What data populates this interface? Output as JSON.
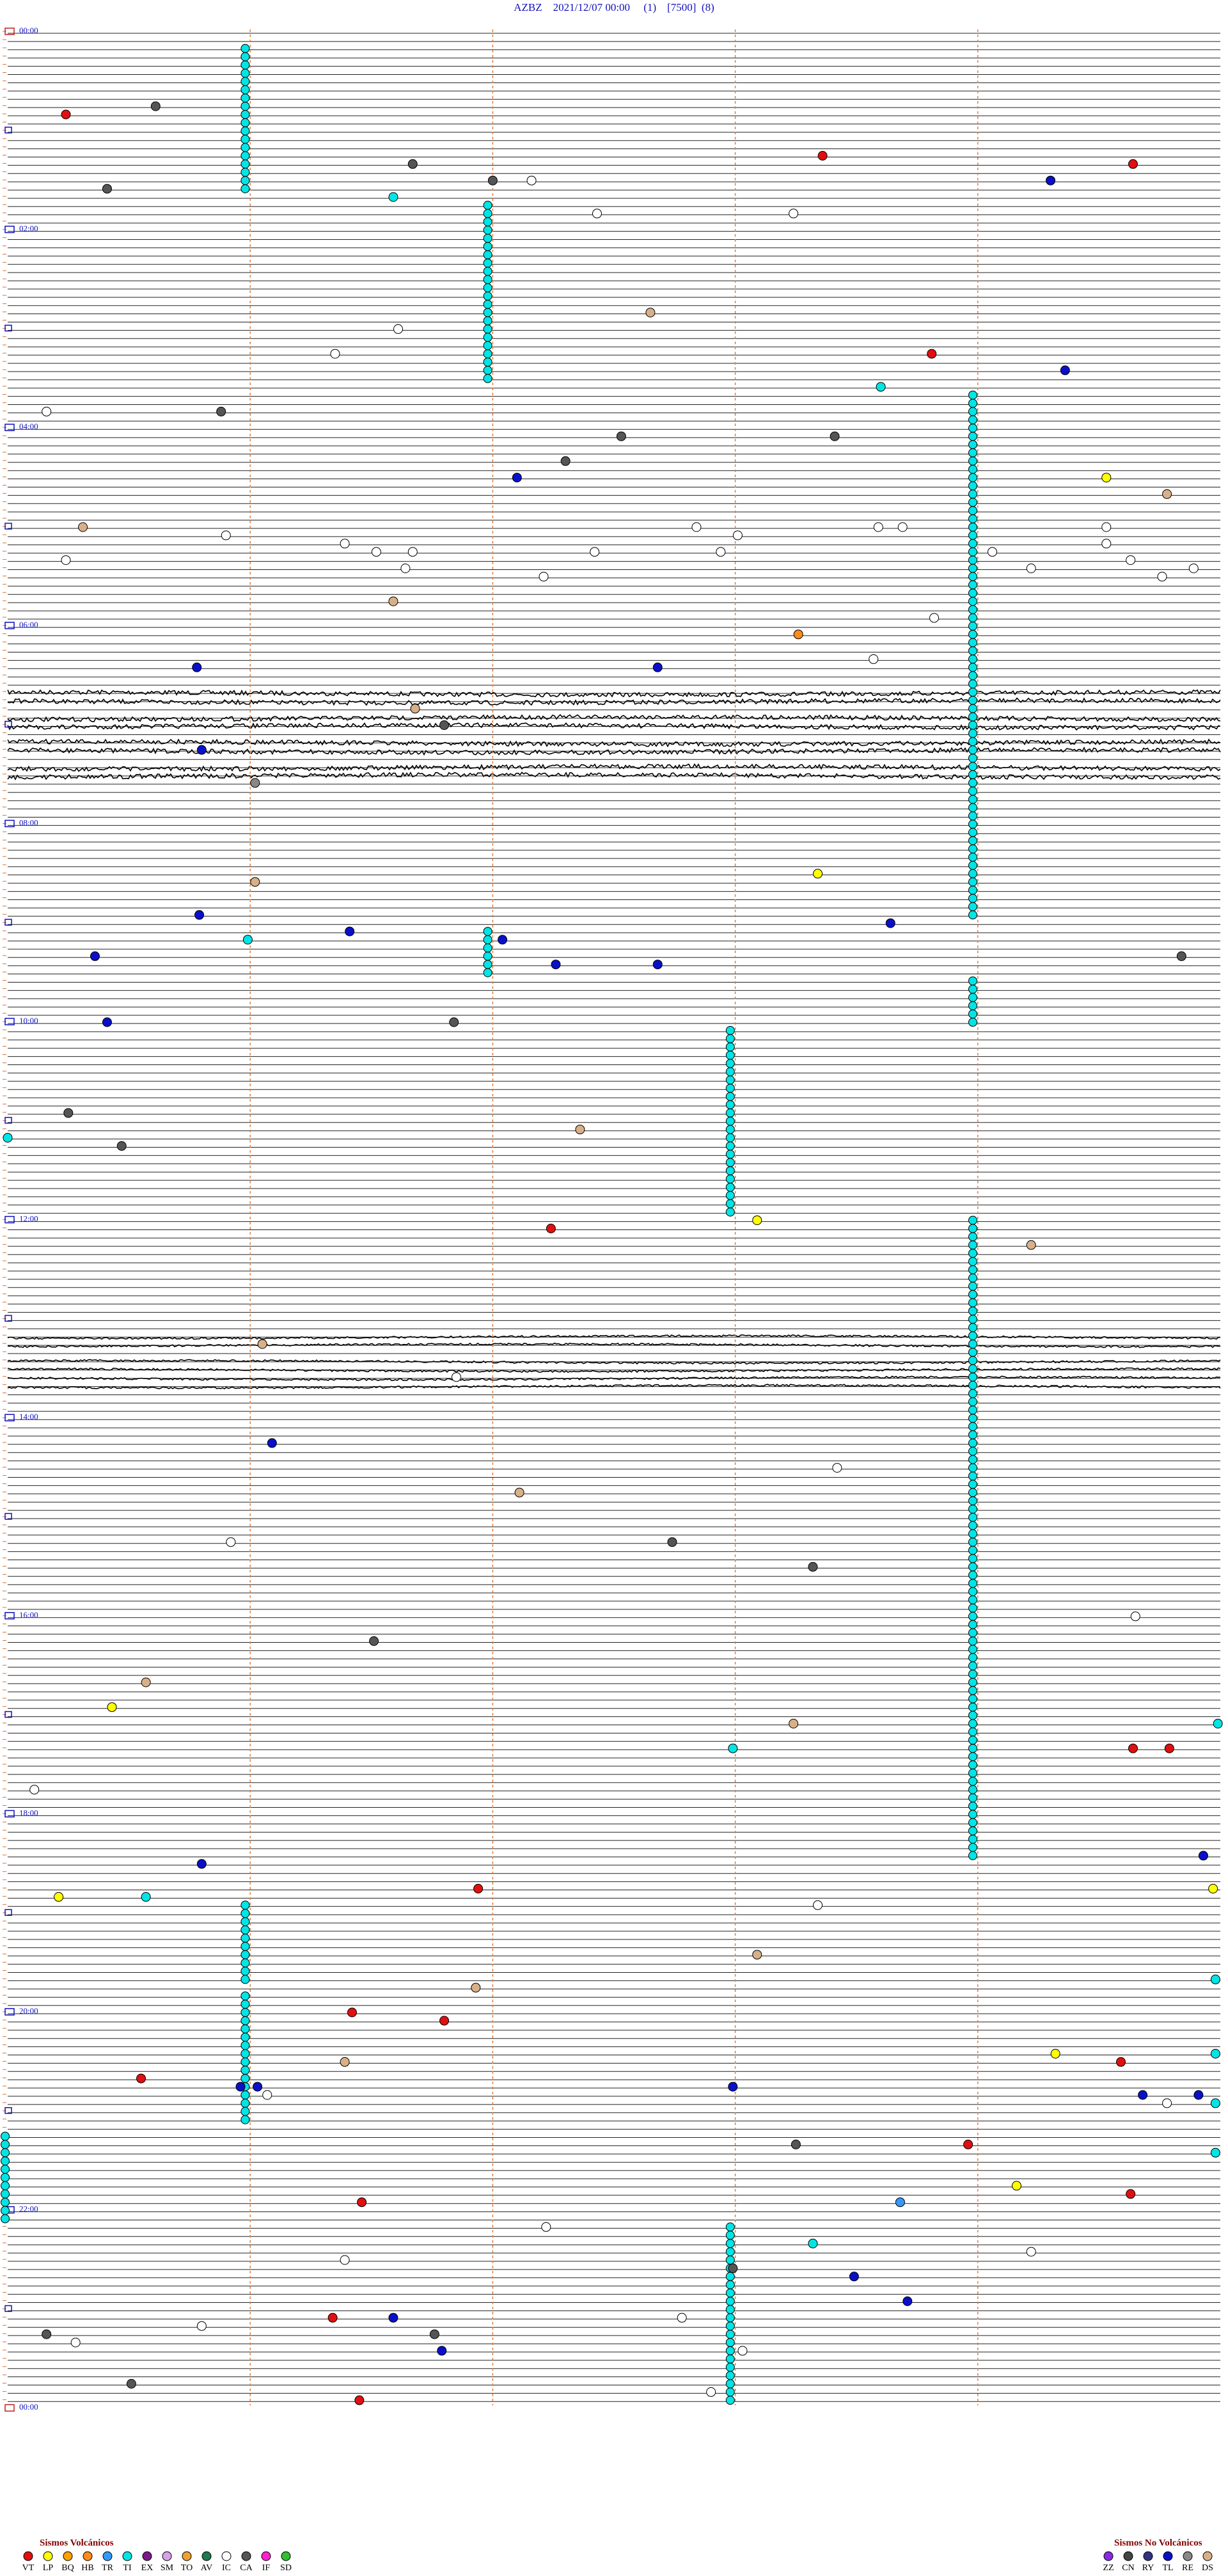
{
  "header": {
    "title": "AZBZ    2021/12/07 00:00     (1)    [7500]  (8)"
  },
  "hour_labels": [
    "00:00",
    "02:00",
    "04:00",
    "06:00",
    "08:00",
    "10:00",
    "12:00",
    "14:00",
    "16:00",
    "18:00",
    "20:00",
    "22:00",
    "00:00"
  ],
  "tremor_runs": [
    {
      "type": "TI",
      "minute": 0.99,
      "rows": [
        2,
        19
      ]
    },
    {
      "type": "TI",
      "minute": 1.99,
      "rows": [
        21,
        42
      ]
    },
    {
      "type": "TI",
      "minute": 3.99,
      "rows": [
        44,
        107
      ]
    },
    {
      "type": "TI",
      "minute": 1.99,
      "rows": [
        109,
        114
      ]
    },
    {
      "type": "TI",
      "minute": 3.99,
      "rows": [
        115,
        120
      ]
    },
    {
      "type": "TI",
      "minute": 2.99,
      "rows": [
        121,
        143
      ]
    },
    {
      "type": "TI",
      "minute": 3.99,
      "rows": [
        144,
        221
      ]
    },
    {
      "type": "TI",
      "minute": 0.99,
      "rows": [
        227,
        236
      ]
    },
    {
      "type": "TI",
      "minute": 0.99,
      "rows": [
        238,
        253
      ]
    },
    {
      "type": "TI",
      "minute": 0.0,
      "rows": [
        255,
        265
      ]
    },
    {
      "type": "TI",
      "minute": 2.99,
      "rows": [
        266,
        287
      ]
    }
  ],
  "events": [
    {
      "row": 10,
      "minute": 0.24,
      "type": "VT"
    },
    {
      "row": 9,
      "minute": 0.61,
      "type": "CA"
    },
    {
      "row": 16,
      "minute": 1.67,
      "type": "CA"
    },
    {
      "row": 15,
      "minute": 3.36,
      "type": "VT"
    },
    {
      "row": 16,
      "minute": 4.64,
      "type": "VT"
    },
    {
      "row": 19,
      "minute": 0.41,
      "type": "CA"
    },
    {
      "row": 18,
      "minute": 2.0,
      "type": "CA"
    },
    {
      "row": 18,
      "minute": 2.16,
      "type": "IC"
    },
    {
      "row": 18,
      "minute": 4.3,
      "type": "TL"
    },
    {
      "row": 20,
      "minute": 1.59,
      "type": "TI"
    },
    {
      "row": 22,
      "minute": 2.43,
      "type": "IC"
    },
    {
      "row": 22,
      "minute": 3.24,
      "type": "IC"
    },
    {
      "row": 34,
      "minute": 2.65,
      "type": "DS"
    },
    {
      "row": 36,
      "minute": 1.61,
      "type": "IC"
    },
    {
      "row": 39,
      "minute": 1.35,
      "type": "IC"
    },
    {
      "row": 39,
      "minute": 3.81,
      "type": "VT"
    },
    {
      "row": 41,
      "minute": 4.36,
      "type": "TL"
    },
    {
      "row": 43,
      "minute": 3.6,
      "type": "TI"
    },
    {
      "row": 46,
      "minute": 0.16,
      "type": "IC"
    },
    {
      "row": 46,
      "minute": 0.88,
      "type": "CA"
    },
    {
      "row": 49,
      "minute": 2.53,
      "type": "CA"
    },
    {
      "row": 49,
      "minute": 3.41,
      "type": "CA"
    },
    {
      "row": 52,
      "minute": 2.3,
      "type": "CA"
    },
    {
      "row": 54,
      "minute": 2.1,
      "type": "TL"
    },
    {
      "row": 54,
      "minute": 4.53,
      "type": "LP"
    },
    {
      "row": 56,
      "minute": 4.78,
      "type": "DS"
    },
    {
      "row": 60,
      "minute": 0.31,
      "type": "DS"
    },
    {
      "row": 61,
      "minute": 0.9,
      "type": "IC"
    },
    {
      "row": 60,
      "minute": 2.84,
      "type": "IC"
    },
    {
      "row": 61,
      "minute": 3.01,
      "type": "IC"
    },
    {
      "row": 60,
      "minute": 3.59,
      "type": "IC"
    },
    {
      "row": 60,
      "minute": 3.69,
      "type": "IC"
    },
    {
      "row": 60,
      "minute": 4.53,
      "type": "IC"
    },
    {
      "row": 62,
      "minute": 1.39,
      "type": "IC"
    },
    {
      "row": 63,
      "minute": 1.52,
      "type": "IC"
    },
    {
      "row": 63,
      "minute": 1.67,
      "type": "IC"
    },
    {
      "row": 63,
      "minute": 2.42,
      "type": "IC"
    },
    {
      "row": 63,
      "minute": 2.94,
      "type": "IC"
    },
    {
      "row": 63,
      "minute": 4.06,
      "type": "IC"
    },
    {
      "row": 62,
      "minute": 4.53,
      "type": "IC"
    },
    {
      "row": 64,
      "minute": 0.24,
      "type": "IC"
    },
    {
      "row": 65,
      "minute": 1.64,
      "type": "IC"
    },
    {
      "row": 66,
      "minute": 2.21,
      "type": "IC"
    },
    {
      "row": 65,
      "minute": 4.22,
      "type": "IC"
    },
    {
      "row": 64,
      "minute": 4.63,
      "type": "IC"
    },
    {
      "row": 66,
      "minute": 4.76,
      "type": "IC"
    },
    {
      "row": 65,
      "minute": 4.89,
      "type": "IC"
    },
    {
      "row": 69,
      "minute": 1.59,
      "type": "DS"
    },
    {
      "row": 71,
      "minute": 3.82,
      "type": "IC"
    },
    {
      "row": 73,
      "minute": 3.26,
      "type": "HB"
    },
    {
      "row": 76,
      "minute": 3.57,
      "type": "IC"
    },
    {
      "row": 77,
      "minute": 0.78,
      "type": "TL"
    },
    {
      "row": 77,
      "minute": 2.68,
      "type": "TL"
    },
    {
      "row": 82,
      "minute": 1.68,
      "type": "DS"
    },
    {
      "row": 84,
      "minute": 1.8,
      "type": "CA"
    },
    {
      "row": 87,
      "minute": 0.8,
      "type": "TL"
    },
    {
      "row": 91,
      "minute": 1.02,
      "type": "RE"
    },
    {
      "row": 102,
      "minute": 3.34,
      "type": "LP"
    },
    {
      "row": 103,
      "minute": 1.02,
      "type": "DS"
    },
    {
      "row": 107,
      "minute": 0.79,
      "type": "TL"
    },
    {
      "row": 108,
      "minute": 3.64,
      "type": "TL"
    },
    {
      "row": 109,
      "minute": 1.41,
      "type": "TL"
    },
    {
      "row": 110,
      "minute": 2.04,
      "type": "TL"
    },
    {
      "row": 110,
      "minute": 0.99,
      "type": "TI"
    },
    {
      "row": 112,
      "minute": 0.36,
      "type": "TL"
    },
    {
      "row": 113,
      "minute": 2.26,
      "type": "TL"
    },
    {
      "row": 113,
      "minute": 2.68,
      "type": "TL"
    },
    {
      "row": 112,
      "minute": 4.84,
      "type": "CA"
    },
    {
      "row": 120,
      "minute": 0.41,
      "type": "TL"
    },
    {
      "row": 120,
      "minute": 1.84,
      "type": "CA"
    },
    {
      "row": 131,
      "minute": 0.25,
      "type": "CA"
    },
    {
      "row": 133,
      "minute": 2.36,
      "type": "DS"
    },
    {
      "row": 135,
      "minute": 0.47,
      "type": "CA"
    },
    {
      "row": 134,
      "minute": 0.0,
      "type": "TI"
    },
    {
      "row": 145,
      "minute": 2.24,
      "type": "VT"
    },
    {
      "row": 144,
      "minute": 3.09,
      "type": "LP"
    },
    {
      "row": 147,
      "minute": 4.22,
      "type": "DS"
    },
    {
      "row": 159,
      "minute": 1.05,
      "type": "DS"
    },
    {
      "row": 163,
      "minute": 1.85,
      "type": "IC"
    },
    {
      "row": 171,
      "minute": 1.09,
      "type": "TL"
    },
    {
      "row": 174,
      "minute": 3.42,
      "type": "IC"
    },
    {
      "row": 177,
      "minute": 2.11,
      "type": "DS"
    },
    {
      "row": 183,
      "minute": 0.92,
      "type": "IC"
    },
    {
      "row": 183,
      "minute": 2.74,
      "type": "CA"
    },
    {
      "row": 186,
      "minute": 3.32,
      "type": "CA"
    },
    {
      "row": 192,
      "minute": 4.65,
      "type": "IC"
    },
    {
      "row": 195,
      "minute": 1.51,
      "type": "CA"
    },
    {
      "row": 200,
      "minute": 0.57,
      "type": "DS"
    },
    {
      "row": 203,
      "minute": 0.43,
      "type": "LP"
    },
    {
      "row": 205,
      "minute": 3.24,
      "type": "DS"
    },
    {
      "row": 205,
      "minute": 4.99,
      "type": "TI"
    },
    {
      "row": 208,
      "minute": 2.99,
      "type": "TI"
    },
    {
      "row": 208,
      "minute": 4.64,
      "type": "VT"
    },
    {
      "row": 208,
      "minute": 4.79,
      "type": "VT"
    },
    {
      "row": 213,
      "minute": 0.11,
      "type": "IC"
    },
    {
      "row": 221,
      "minute": 4.93,
      "type": "TL"
    },
    {
      "row": 222,
      "minute": 0.8,
      "type": "TL"
    },
    {
      "row": 225,
      "minute": 1.94,
      "type": "VT"
    },
    {
      "row": 225,
      "minute": 4.97,
      "type": "LP"
    },
    {
      "row": 226,
      "minute": 0.21,
      "type": "LP"
    },
    {
      "row": 226,
      "minute": 0.57,
      "type": "TI"
    },
    {
      "row": 227,
      "minute": 3.34,
      "type": "IC"
    },
    {
      "row": 233,
      "minute": 3.09,
      "type": "DS"
    },
    {
      "row": 236,
      "minute": 4.98,
      "type": "TI"
    },
    {
      "row": 237,
      "minute": 1.93,
      "type": "DS"
    },
    {
      "row": 240,
      "minute": 1.42,
      "type": "VT"
    },
    {
      "row": 241,
      "minute": 1.8,
      "type": "VT"
    },
    {
      "row": 245,
      "minute": 4.32,
      "type": "LP"
    },
    {
      "row": 245,
      "minute": 4.98,
      "type": "TI"
    },
    {
      "row": 246,
      "minute": 1.39,
      "type": "DS"
    },
    {
      "row": 246,
      "minute": 4.59,
      "type": "VT"
    },
    {
      "row": 248,
      "minute": 0.55,
      "type": "VT"
    },
    {
      "row": 249,
      "minute": 0.96,
      "type": "TL"
    },
    {
      "row": 249,
      "minute": 1.03,
      "type": "TL"
    },
    {
      "row": 249,
      "minute": 2.99,
      "type": "TL"
    },
    {
      "row": 250,
      "minute": 1.07,
      "type": "IC"
    },
    {
      "row": 250,
      "minute": 4.68,
      "type": "TL"
    },
    {
      "row": 250,
      "minute": 4.91,
      "type": "TL"
    },
    {
      "row": 251,
      "minute": 4.78,
      "type": "IC"
    },
    {
      "row": 251,
      "minute": 4.98,
      "type": "TI"
    },
    {
      "row": 256,
      "minute": 3.25,
      "type": "CA"
    },
    {
      "row": 256,
      "minute": 3.96,
      "type": "VT"
    },
    {
      "row": 257,
      "minute": 4.98,
      "type": "TI"
    },
    {
      "row": 261,
      "minute": 4.16,
      "type": "LP"
    },
    {
      "row": 262,
      "minute": 4.63,
      "type": "VT"
    },
    {
      "row": 263,
      "minute": 1.46,
      "type": "VT"
    },
    {
      "row": 263,
      "minute": 3.68,
      "type": "TR"
    },
    {
      "row": 266,
      "minute": 2.22,
      "type": "IC"
    },
    {
      "row": 268,
      "minute": 3.32,
      "type": "TI"
    },
    {
      "row": 269,
      "minute": 4.22,
      "type": "IC"
    },
    {
      "row": 270,
      "minute": 1.39,
      "type": "IC"
    },
    {
      "row": 272,
      "minute": 3.49,
      "type": "TL"
    },
    {
      "row": 271,
      "minute": 2.99,
      "type": "CA"
    },
    {
      "row": 275,
      "minute": 3.71,
      "type": "TL"
    },
    {
      "row": 277,
      "minute": 1.34,
      "type": "VT"
    },
    {
      "row": 277,
      "minute": 1.59,
      "type": "TL"
    },
    {
      "row": 277,
      "minute": 2.78,
      "type": "IC"
    },
    {
      "row": 278,
      "minute": 0.8,
      "type": "IC"
    },
    {
      "row": 279,
      "minute": 0.16,
      "type": "CA"
    },
    {
      "row": 279,
      "minute": 1.76,
      "type": "CA"
    },
    {
      "row": 280,
      "minute": 0.28,
      "type": "IC"
    },
    {
      "row": 281,
      "minute": 1.79,
      "type": "TL"
    },
    {
      "row": 281,
      "minute": 3.03,
      "type": "IC"
    },
    {
      "row": 285,
      "minute": 0.51,
      "type": "CA"
    },
    {
      "row": 286,
      "minute": 2.9,
      "type": "IC"
    },
    {
      "row": 287,
      "minute": 1.45,
      "type": "VT"
    }
  ],
  "legend": {
    "volcanic": {
      "title": "Sismos Volcánicos",
      "items": [
        {
          "code": "VT",
          "color": "#e01010"
        },
        {
          "code": "LP",
          "color": "#ffff00"
        },
        {
          "code": "BQ",
          "color": "#ffa000"
        },
        {
          "code": "HB",
          "color": "#ff8c1a"
        },
        {
          "code": "TR",
          "color": "#3399ff"
        },
        {
          "code": "TI",
          "color": "#00e5e5"
        },
        {
          "code": "EX",
          "color": "#7a1a8a"
        },
        {
          "code": "SM",
          "color": "#d8a0e8"
        },
        {
          "code": "TO",
          "color": "#f0a030"
        },
        {
          "code": "AV",
          "color": "#1a7a50"
        },
        {
          "code": "IC",
          "color": "#ffffff"
        },
        {
          "code": "CA",
          "color": "#555555"
        },
        {
          "code": "IF",
          "color": "#ff20d0"
        },
        {
          "code": "SD",
          "color": "#30c030"
        }
      ]
    },
    "non_volcanic": {
      "title": "Sismos No Volcánicos",
      "items": [
        {
          "code": "ZZ",
          "color": "#8a2be2"
        },
        {
          "code": "CN",
          "color": "#444444"
        },
        {
          "code": "RY",
          "color": "#333380"
        },
        {
          "code": "TL",
          "color": "#0a10c8"
        },
        {
          "code": "RE",
          "color": "#888888"
        },
        {
          "code": "DS",
          "color": "#d8b088"
        }
      ]
    }
  }
}
